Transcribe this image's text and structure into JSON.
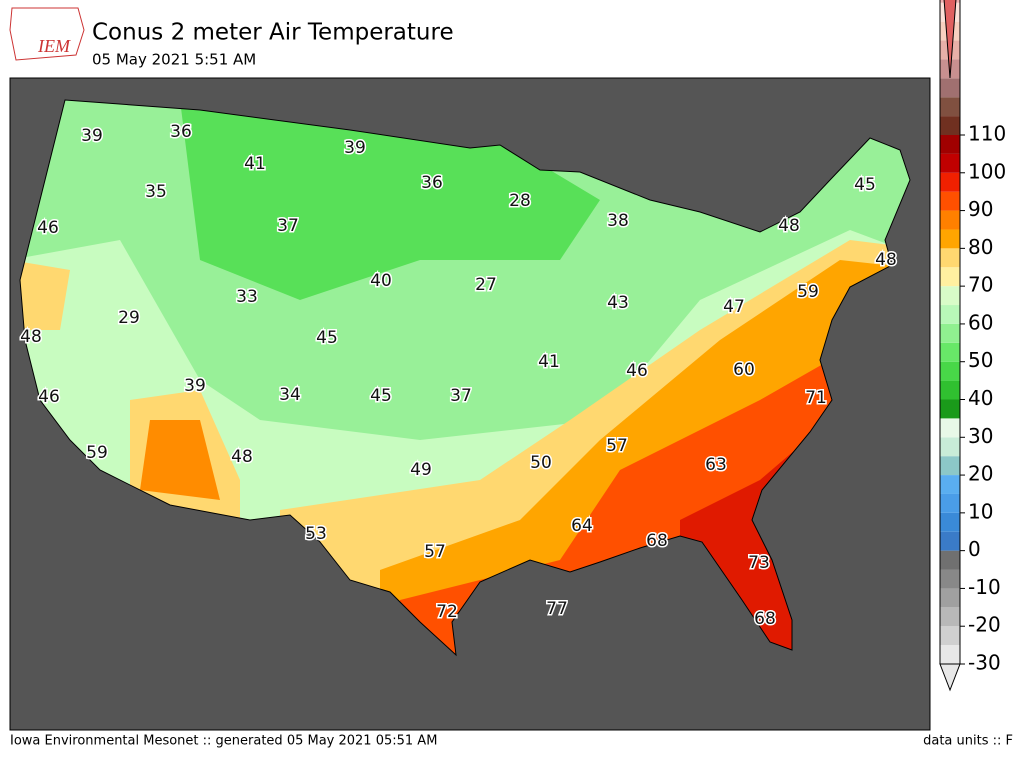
{
  "header": {
    "logo": "IEM",
    "title": "Conus 2 meter Air Temperature",
    "subtitle": "05 May 2021 5:51 AM"
  },
  "footer": {
    "left": "Iowa Environmental Mesonet :: generated 05 May 2021 05:51 AM",
    "right": "data units :: F"
  },
  "colorbar": {
    "ticks": [
      -30,
      -20,
      -10,
      0,
      10,
      20,
      30,
      40,
      50,
      60,
      70,
      80,
      90,
      100,
      110
    ],
    "colors": [
      "#e8e8e8",
      "#d0d0d0",
      "#b8b8b8",
      "#a0a0a0",
      "#888888",
      "#707070",
      "#3a7bc8",
      "#3a8ad8",
      "#4a9de8",
      "#5aaef0",
      "#8cc8c8",
      "#c8ecd8",
      "#e8f8e8",
      "#1a9a1a",
      "#30c030",
      "#48d848",
      "#68e868",
      "#90f090",
      "#b8f8b8",
      "#d8fcc8",
      "#fff0a0",
      "#ffd870",
      "#ffa500",
      "#ff8000",
      "#ff5000",
      "#f02000",
      "#c00000",
      "#a00000",
      "#703020",
      "#805040",
      "#a07070",
      "#c89090",
      "#e8b0a8",
      "#f8d0c0",
      "#fce0d8",
      "#f0b0b0",
      "#e88080",
      "#e06060"
    ]
  },
  "map": {
    "labels": [
      "39",
      "36",
      "39",
      "41",
      "36",
      "28",
      "35",
      "46",
      "37",
      "38",
      "48",
      "45",
      "48",
      "40",
      "27",
      "33",
      "29",
      "59",
      "47",
      "43",
      "45",
      "48",
      "60",
      "46",
      "41",
      "39",
      "34",
      "45",
      "37",
      "46",
      "71",
      "57",
      "59",
      "48",
      "63",
      "49",
      "50",
      "64",
      "68",
      "53",
      "57",
      "73",
      "77",
      "72",
      "68"
    ]
  }
}
